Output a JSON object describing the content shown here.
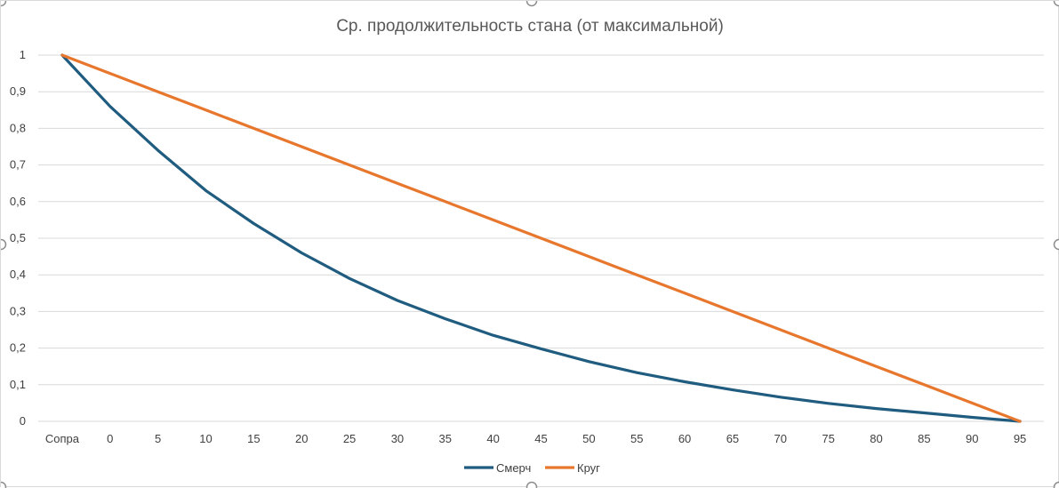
{
  "chart_data": {
    "type": "line",
    "title": "Ср. продолжительность стана (от максимальной)",
    "xlabel": "",
    "ylabel": "",
    "categories": [
      "Сопра",
      "0",
      "5",
      "10",
      "15",
      "20",
      "25",
      "30",
      "35",
      "40",
      "45",
      "50",
      "55",
      "60",
      "65",
      "70",
      "75",
      "80",
      "85",
      "90",
      "95"
    ],
    "ylim": [
      0,
      1
    ],
    "yticks": [
      "0",
      "0,1",
      "0,2",
      "0,3",
      "0,4",
      "0,5",
      "0,6",
      "0,7",
      "0,8",
      "0,9",
      "1"
    ],
    "ytick_values": [
      0,
      0.1,
      0.2,
      0.3,
      0.4,
      0.5,
      0.6,
      0.7,
      0.8,
      0.9,
      1
    ],
    "grid": true,
    "legend_position": "bottom",
    "series": [
      {
        "name": "Смерч",
        "color": "#1f5c7f",
        "values": [
          1,
          0.86,
          0.74,
          0.63,
          0.54,
          0.46,
          0.39,
          0.33,
          0.28,
          0.235,
          0.198,
          0.163,
          0.133,
          0.108,
          0.086,
          0.066,
          0.049,
          0.035,
          0.023,
          0.011,
          0
        ]
      },
      {
        "name": "Круг",
        "color": "#e8772e",
        "values": [
          1,
          0.95,
          0.9,
          0.85,
          0.8,
          0.75,
          0.7,
          0.65,
          0.6,
          0.55,
          0.5,
          0.45,
          0.4,
          0.35,
          0.3,
          0.25,
          0.2,
          0.15,
          0.1,
          0.05,
          0
        ]
      }
    ]
  }
}
